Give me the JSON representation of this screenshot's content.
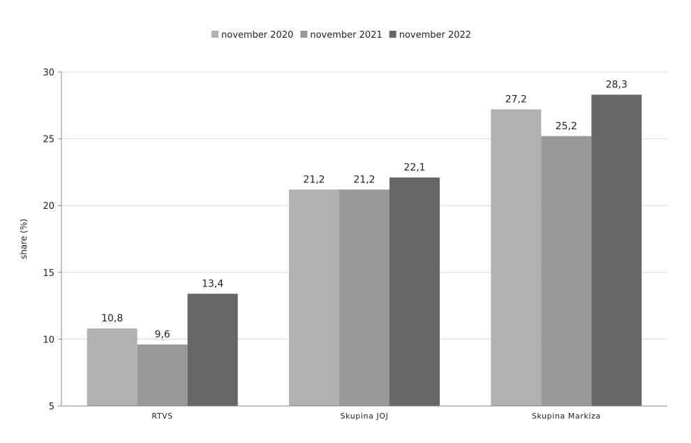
{
  "chart_data": {
    "type": "bar",
    "title": "",
    "xlabel": "",
    "ylabel": "share (%)",
    "ylim": [
      5,
      30
    ],
    "yticks": [
      5,
      10,
      15,
      20,
      25,
      30
    ],
    "grid": true,
    "legend_position": "top-center",
    "categories": [
      "RTVS",
      "Skupina JOJ",
      "Skupina Markíza"
    ],
    "series": [
      {
        "name": "november 2020",
        "color": "#b1b1b1",
        "values": [
          10.8,
          21.2,
          27.2
        ],
        "labels": [
          "10,8",
          "21,2",
          "27,2"
        ]
      },
      {
        "name": "november 2021",
        "color": "#999999",
        "values": [
          9.6,
          21.2,
          25.2
        ],
        "labels": [
          "9,6",
          "21,2",
          "25,2"
        ]
      },
      {
        "name": "november 2022",
        "color": "#666666",
        "values": [
          13.4,
          22.1,
          28.3
        ],
        "labels": [
          "13,4",
          "22,1",
          "28,3"
        ]
      }
    ]
  }
}
